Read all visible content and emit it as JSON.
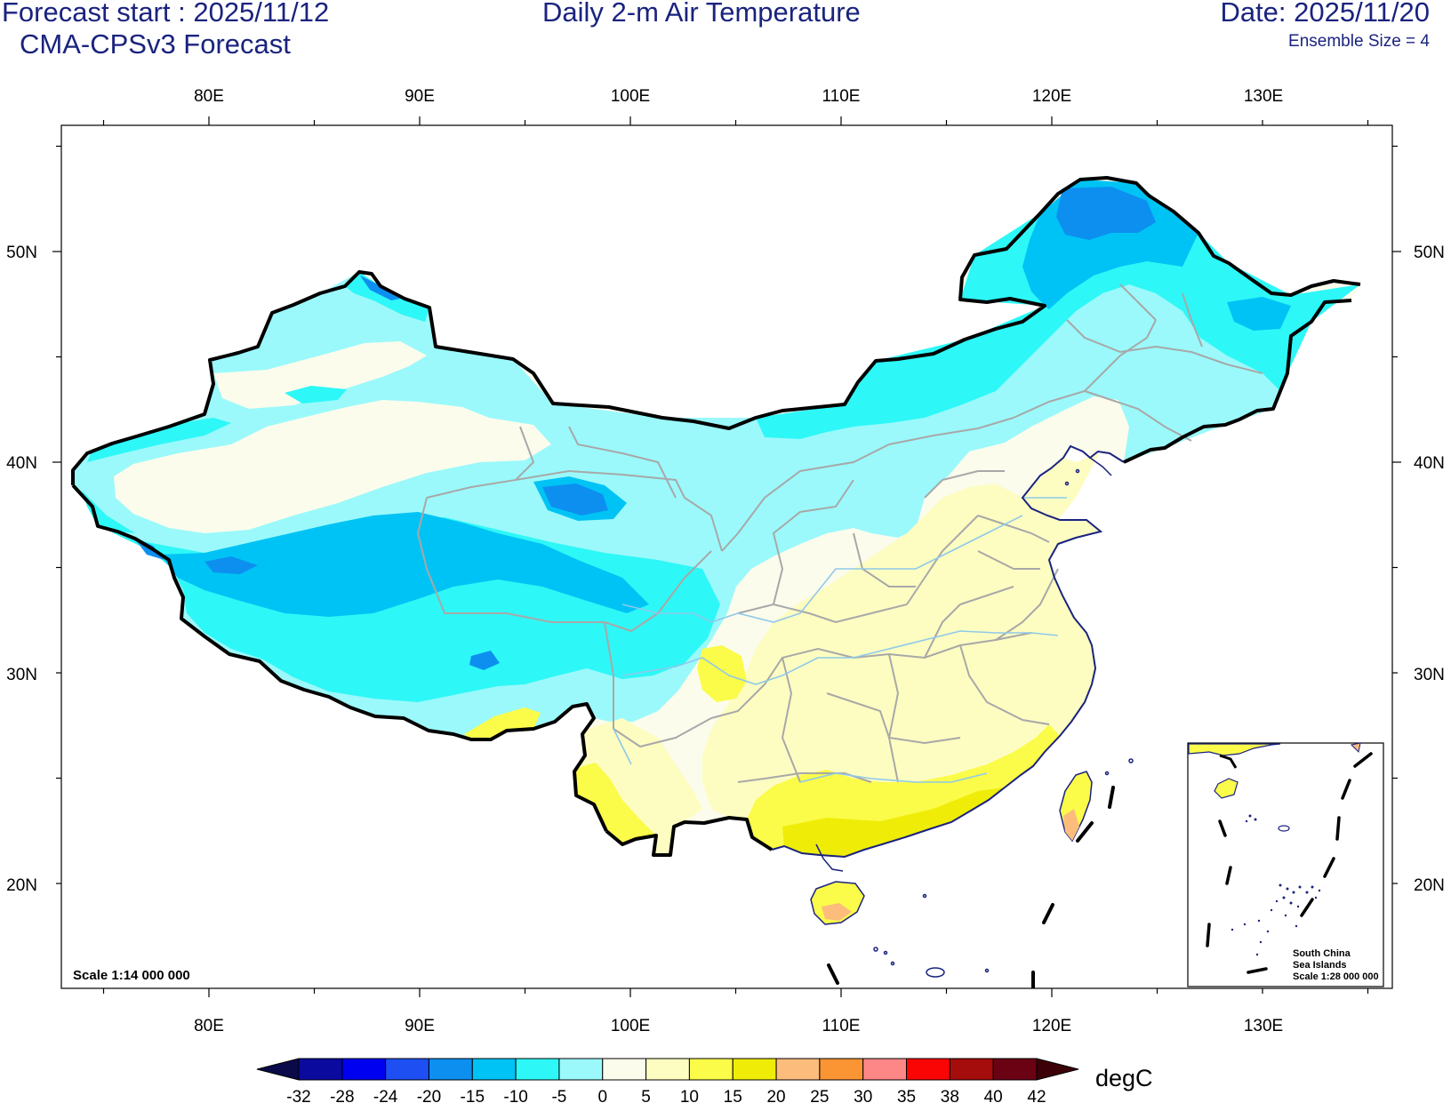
{
  "header": {
    "forecast_start": "Forecast start : 2025/11/12",
    "model": "CMA-CPSv3 Forecast",
    "title": "Daily 2-m Air Temperature",
    "date": "Date: 2025/11/20",
    "ensemble": "Ensemble Size = 4"
  },
  "map": {
    "lon_labels": [
      "80E",
      "90E",
      "100E",
      "110E",
      "120E",
      "130E"
    ],
    "lat_labels": [
      "50N",
      "40N",
      "30N",
      "20N"
    ],
    "scale_main": "Scale 1:14 000 000",
    "inset": {
      "line1": "South China",
      "line2": "Sea Islands",
      "line3": "Scale 1:28 000 000"
    }
  },
  "colorbar": {
    "unit": "degC",
    "labels": [
      "-32",
      "-28",
      "-24",
      "-20",
      "-15",
      "-10",
      "-5",
      "0",
      "5",
      "10",
      "15",
      "20",
      "25",
      "30",
      "35",
      "38",
      "40",
      "42"
    ],
    "colors": [
      "#0a0a4a",
      "#0a0a9e",
      "#0000f0",
      "#1d4ff2",
      "#0d8ff0",
      "#00c3f5",
      "#2ef7f7",
      "#9bf9fb",
      "#fcfcec",
      "#fdfdc2",
      "#fbfb4a",
      "#efec08",
      "#fcbc7c",
      "#fb9433",
      "#fd8686",
      "#fb0404",
      "#a50c0c",
      "#6a0214",
      "#3c0008"
    ]
  }
}
